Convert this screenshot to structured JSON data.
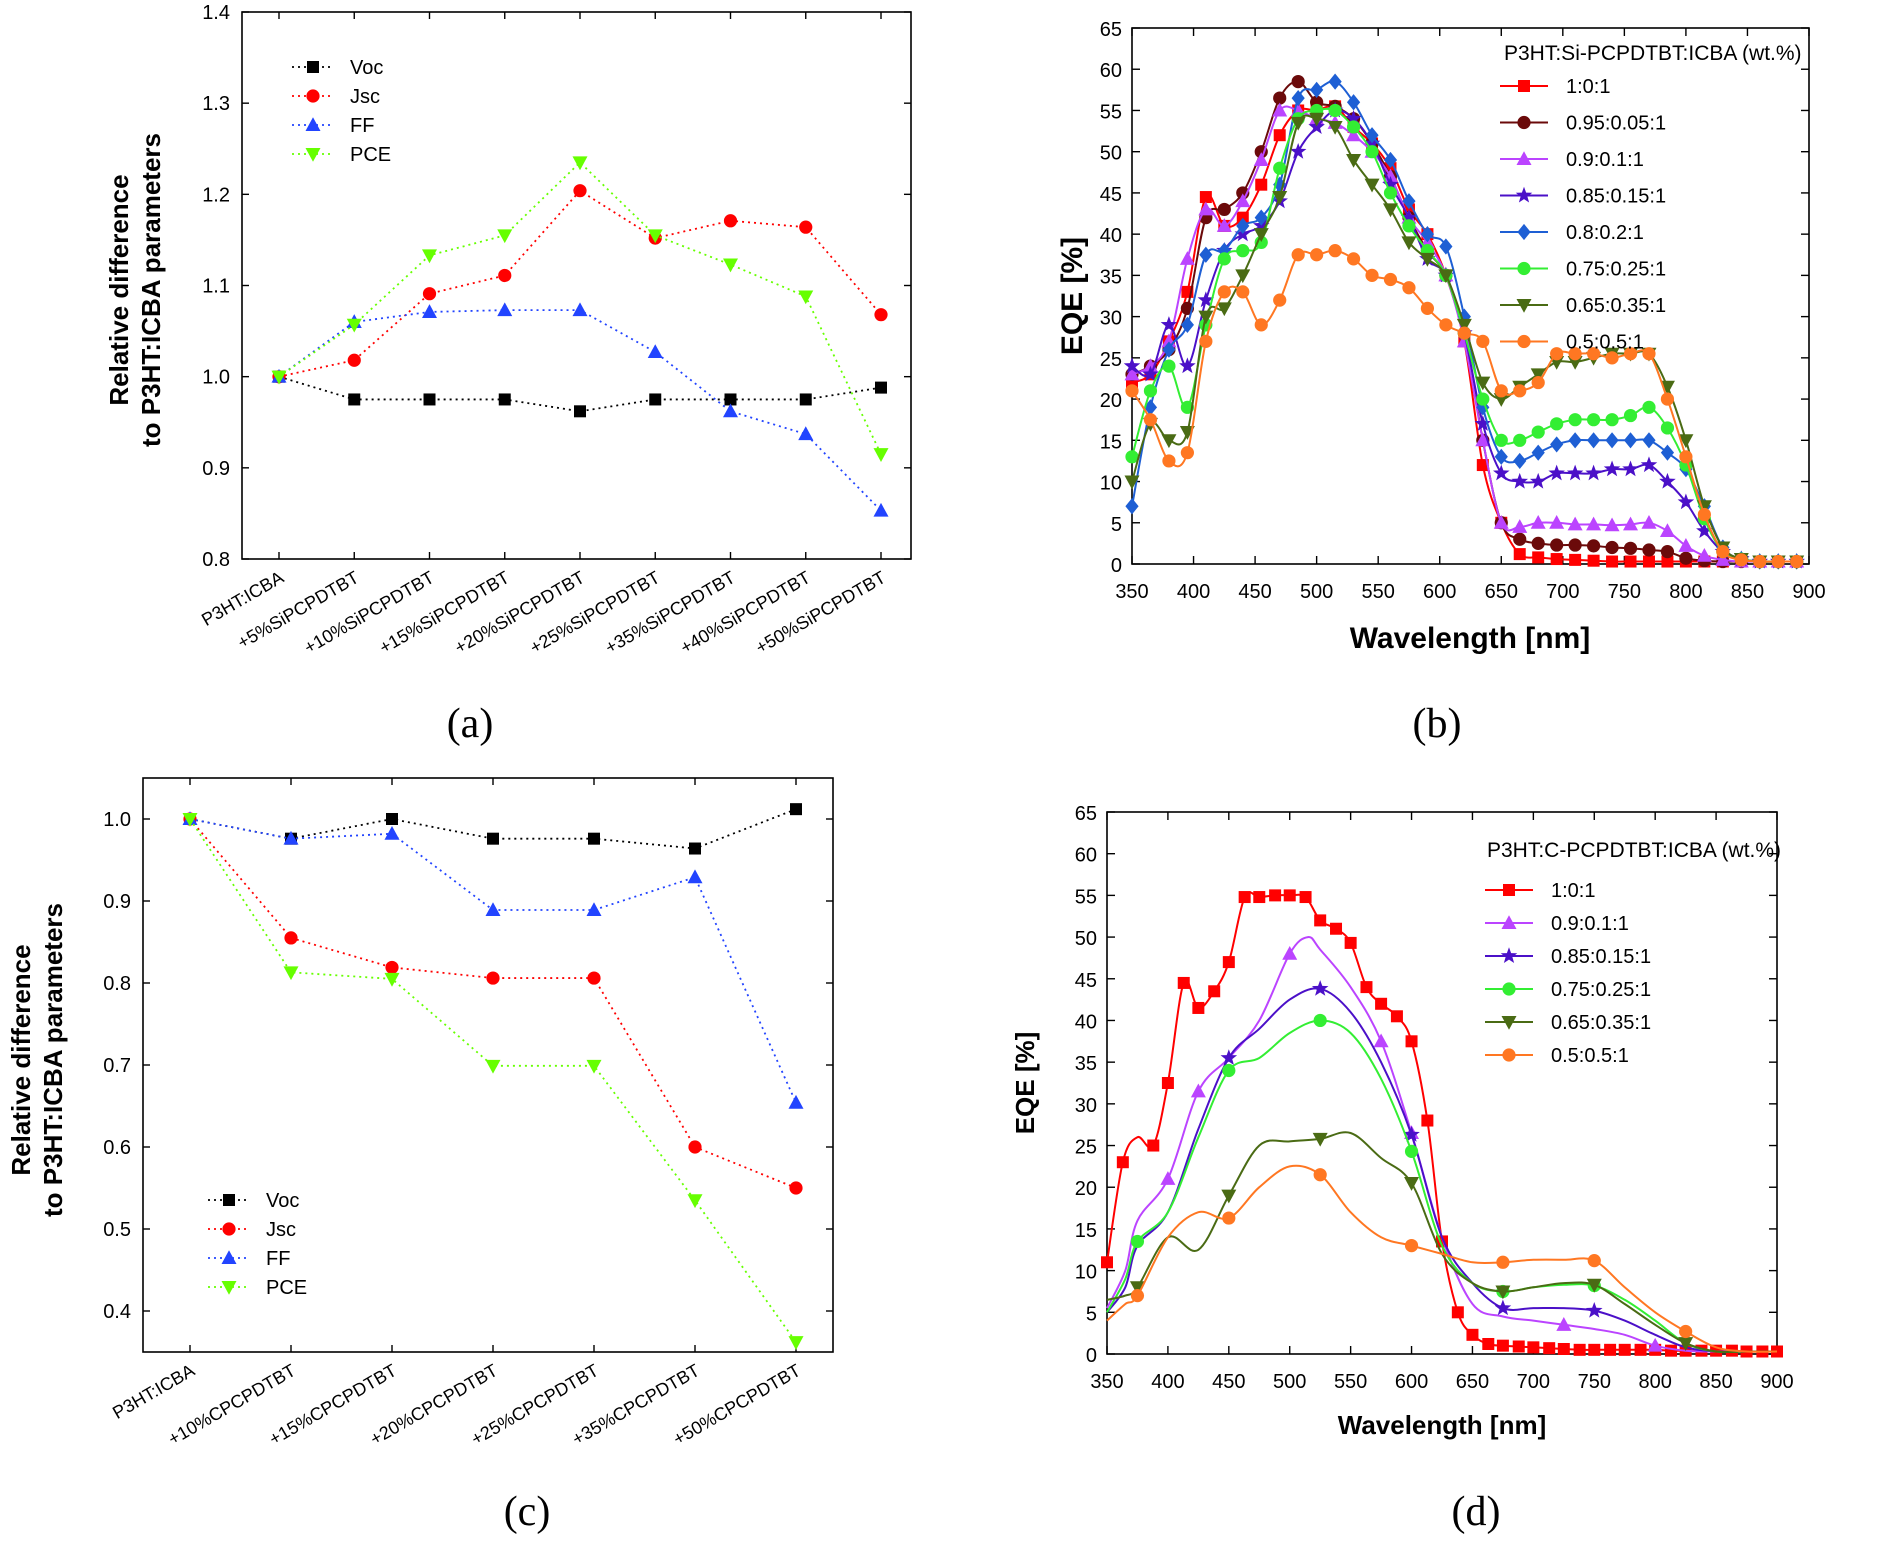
{
  "chart_data": [
    {
      "panel": "(a)",
      "type": "line",
      "ylabel_line1": "Relative difference",
      "ylabel_line2": "to P3HT:ICBA parameters",
      "ylim": [
        0.8,
        1.4
      ],
      "yticks": [
        "0.8",
        "0.9",
        "1.0",
        "1.1",
        "1.2",
        "1.3",
        "1.4"
      ],
      "categories": [
        "P3HT:ICBA",
        "+5%SiPCPDTBT",
        "+10%SiPCPDTBT",
        "+15%SiPCPDTBT",
        "+20%SiPCPDTBT",
        "+25%SiPCPDTBT",
        "+35%SiPCPDTBT",
        "+40%SiPCPDTBT",
        "+50%SiPCPDTBT"
      ],
      "legend_position": "top-left",
      "series": [
        {
          "name": "Voc",
          "color": "#000000",
          "marker": "square",
          "values": [
            1.0,
            0.975,
            0.975,
            0.975,
            0.962,
            0.975,
            0.975,
            0.975,
            0.988
          ]
        },
        {
          "name": "Jsc",
          "color": "#ff0000",
          "marker": "circle",
          "values": [
            1.0,
            1.018,
            1.091,
            1.111,
            1.204,
            1.152,
            1.171,
            1.164,
            1.068
          ]
        },
        {
          "name": "FF",
          "color": "#2244ff",
          "marker": "triangle-up",
          "values": [
            1.0,
            1.06,
            1.071,
            1.073,
            1.073,
            1.027,
            0.962,
            0.937,
            0.853
          ]
        },
        {
          "name": "PCE",
          "color": "#66ff00",
          "marker": "triangle-down",
          "values": [
            1.0,
            1.057,
            1.133,
            1.155,
            1.235,
            1.155,
            1.123,
            1.088,
            0.915
          ]
        }
      ]
    },
    {
      "panel": "(b)",
      "type": "line",
      "xlabel": "Wavelength [nm]",
      "ylabel": "EQE [%]",
      "xlim": [
        350,
        900
      ],
      "ylim": [
        0,
        65
      ],
      "xticks": [
        "350",
        "400",
        "450",
        "500",
        "550",
        "600",
        "650",
        "700",
        "750",
        "800",
        "850",
        "900"
      ],
      "yticks": [
        "0",
        "5",
        "10",
        "15",
        "20",
        "25",
        "30",
        "35",
        "40",
        "45",
        "50",
        "55",
        "60",
        "65"
      ],
      "legend_title": "P3HT:Si-PCPDTBT:ICBA (wt.%)",
      "legend_position": "top-right",
      "x": [
        350,
        365,
        380,
        395,
        410,
        425,
        440,
        455,
        470,
        485,
        500,
        515,
        530,
        545,
        560,
        575,
        590,
        605,
        620,
        635,
        650,
        665,
        680,
        695,
        710,
        725,
        740,
        755,
        770,
        785,
        800,
        815,
        830,
        845,
        860,
        875,
        890
      ],
      "series": [
        {
          "name": "1:0:1",
          "color": "#ff0000",
          "marker": "square",
          "values": [
            22,
            23,
            27,
            33,
            44.5,
            41,
            42,
            46,
            52,
            55,
            55,
            55.5,
            53,
            51,
            48,
            43,
            40,
            35,
            27,
            12,
            5,
            1.2,
            0.8,
            0.6,
            0.5,
            0.4,
            0.3,
            0.3,
            0.3,
            0.3,
            0.3,
            0.3,
            0.3,
            0.3,
            0.3,
            0.3,
            0.3
          ]
        },
        {
          "name": "0.95:0.05:1",
          "color": "#6b0a0a",
          "marker": "circle",
          "values": [
            23,
            24,
            26,
            31,
            42,
            43,
            45,
            50,
            56.5,
            58.5,
            56,
            55.5,
            54,
            51,
            47,
            42,
            38,
            35,
            28,
            15,
            5,
            3,
            2.5,
            2.3,
            2.3,
            2.2,
            2.0,
            1.9,
            1.7,
            1.5,
            0.7,
            0.4,
            0.3,
            0.3,
            0.3,
            0.3,
            0.3
          ]
        },
        {
          "name": "0.9:0.1:1",
          "color": "#bb44ff",
          "marker": "triangle-up",
          "values": [
            23,
            24,
            27,
            37,
            43,
            41,
            44,
            49,
            55,
            55,
            54,
            53.5,
            52,
            50,
            47,
            42,
            39,
            35,
            27,
            15,
            5,
            4.5,
            5,
            5,
            4.8,
            4.8,
            4.7,
            4.8,
            5,
            4,
            2.2,
            1.0,
            0.5,
            0.3,
            0.3,
            0.3,
            0.3
          ]
        },
        {
          "name": "0.85:0.15:1",
          "color": "#4b10c8",
          "marker": "star",
          "values": [
            24,
            23,
            29,
            24,
            32,
            38,
            40,
            41,
            44,
            50,
            53,
            55,
            54,
            51,
            46,
            42,
            37,
            35,
            28,
            17,
            11,
            10,
            10,
            11,
            11,
            11,
            11.5,
            11.5,
            12,
            10,
            7.5,
            4,
            1.5,
            0.6,
            0.3,
            0.3,
            0.3
          ]
        },
        {
          "name": "0.8:0.2:1",
          "color": "#1e5fd4",
          "marker": "diamond",
          "values": [
            7,
            19,
            26,
            29,
            37.5,
            38,
            41,
            42,
            46,
            56.5,
            57.5,
            58.5,
            56,
            52,
            49,
            44,
            40,
            38.5,
            30,
            19,
            13,
            12.5,
            13.5,
            14.5,
            15,
            15,
            15,
            15,
            15,
            13.5,
            11.5,
            7,
            2,
            0.6,
            0.3,
            0.3,
            0.3
          ]
        },
        {
          "name": "0.75:0.25:1",
          "color": "#33ee33",
          "marker": "circle",
          "values": [
            13,
            21,
            24,
            19,
            29,
            37,
            38,
            39,
            48,
            54,
            55,
            55,
            53,
            50,
            45,
            41,
            38,
            35,
            28,
            20,
            15,
            15,
            16,
            17,
            17.5,
            17.5,
            17.5,
            18,
            19,
            16.5,
            12,
            5.5,
            1.5,
            0.6,
            0.3,
            0.3,
            0.3
          ]
        },
        {
          "name": "0.65:0.35:1",
          "color": "#4a6b14",
          "marker": "triangle-down",
          "values": [
            10,
            17,
            15,
            16,
            30,
            31,
            35,
            40,
            44.5,
            53.5,
            54,
            53,
            49,
            46,
            43,
            39,
            37,
            35,
            29,
            22,
            20,
            21.5,
            23,
            24.5,
            24.5,
            25,
            25.5,
            25.5,
            25.5,
            21.5,
            15,
            7,
            2,
            0.6,
            0.3,
            0.3,
            0.3
          ]
        },
        {
          "name": "0.5:0.5:1",
          "color": "#ff7722",
          "marker": "circle",
          "values": [
            21,
            17.5,
            12.5,
            13.5,
            27,
            33,
            33,
            29,
            32,
            37.5,
            37.5,
            38,
            37,
            35,
            34.5,
            33.5,
            31,
            29,
            28,
            27,
            21,
            21,
            22,
            25.5,
            25.5,
            25.5,
            25,
            25.5,
            25.5,
            20,
            13,
            6,
            1.5,
            0.5,
            0.3,
            0.3,
            0.3
          ]
        }
      ]
    },
    {
      "panel": "(c)",
      "type": "line",
      "ylabel_line1": "Relative difference",
      "ylabel_line2": "to P3HT:ICBA parameters",
      "ylim": [
        0.35,
        1.05
      ],
      "yticks": [
        "0.4",
        "0.5",
        "0.6",
        "0.7",
        "0.8",
        "0.9",
        "1.0"
      ],
      "categories": [
        "P3HT:ICBA",
        "+10%CPCPDTBT",
        "+15%CPCPDTBT",
        "+20%CPCPDTBT",
        "+25%CPCPDTBT",
        "+35%CPCPDTBT",
        "+50%CPCPDTBT"
      ],
      "legend_position": "bottom-left",
      "series": [
        {
          "name": "Voc",
          "color": "#000000",
          "marker": "square",
          "values": [
            1.0,
            0.976,
            1.0,
            0.976,
            0.976,
            0.964,
            1.012
          ]
        },
        {
          "name": "Jsc",
          "color": "#ff0000",
          "marker": "circle",
          "values": [
            1.0,
            0.855,
            0.819,
            0.806,
            0.806,
            0.6,
            0.55
          ]
        },
        {
          "name": "FF",
          "color": "#2244ff",
          "marker": "triangle-up",
          "values": [
            1.0,
            0.976,
            0.982,
            0.889,
            0.889,
            0.929,
            0.654
          ]
        },
        {
          "name": "PCE",
          "color": "#66ff00",
          "marker": "triangle-down",
          "values": [
            1.0,
            0.813,
            0.805,
            0.699,
            0.699,
            0.535,
            0.362
          ]
        }
      ]
    },
    {
      "panel": "(d)",
      "type": "line",
      "xlabel": "Wavelength [nm]",
      "ylabel": "EQE [%]",
      "xlim": [
        350,
        900
      ],
      "ylim": [
        0,
        65
      ],
      "xticks": [
        "350",
        "400",
        "450",
        "500",
        "550",
        "600",
        "650",
        "700",
        "750",
        "800",
        "850",
        "900"
      ],
      "yticks": [
        "0",
        "5",
        "10",
        "15",
        "20",
        "25",
        "30",
        "35",
        "40",
        "45",
        "50",
        "55",
        "60",
        "65"
      ],
      "legend_title": "P3HT:C-PCPDTBT:ICBA (wt.%)",
      "legend_position": "top-right",
      "series": [
        {
          "name": "1:0:1",
          "color": "#ff0000",
          "marker": "square",
          "x": [
            350,
            363,
            375,
            388,
            400,
            413,
            425,
            438,
            450,
            463,
            475,
            488,
            500,
            513,
            525,
            538,
            550,
            563,
            575,
            588,
            600,
            613,
            625,
            638,
            650,
            663,
            675,
            688,
            700,
            713,
            725,
            738,
            750,
            763,
            775,
            788,
            800,
            813,
            825,
            838,
            850,
            863,
            875,
            888,
            900
          ],
          "values": [
            11,
            23,
            26,
            25,
            32.5,
            44.5,
            41.5,
            43.5,
            47,
            54.8,
            54.8,
            55,
            55,
            54.8,
            52,
            51,
            49.3,
            44,
            42,
            40.5,
            37.5,
            28,
            13.5,
            5,
            2.3,
            1.2,
            1.0,
            0.9,
            0.8,
            0.7,
            0.6,
            0.5,
            0.5,
            0.5,
            0.5,
            0.5,
            0.5,
            0.4,
            0.4,
            0.4,
            0.4,
            0.4,
            0.3,
            0.3,
            0.3
          ],
          "marked": [
            0,
            1,
            3,
            4,
            5,
            6,
            7,
            8,
            9,
            10,
            11,
            12,
            13,
            14,
            15,
            16,
            17,
            18,
            19,
            20,
            21,
            22,
            23,
            24,
            25,
            26,
            27,
            28,
            29,
            30,
            31,
            32,
            33,
            34,
            35,
            36,
            37,
            38,
            39,
            40,
            41,
            42,
            43,
            44
          ]
        },
        {
          "name": "0.9:0.1:1",
          "color": "#bb44ff",
          "marker": "triangle-up",
          "x": [
            350,
            365,
            375,
            400,
            425,
            450,
            475,
            500,
            515,
            525,
            550,
            575,
            600,
            625,
            650,
            675,
            700,
            725,
            750,
            775,
            800,
            825,
            850,
            875,
            900
          ],
          "values": [
            5.5,
            10,
            16,
            21,
            31.5,
            35.5,
            40,
            48,
            50,
            48.5,
            44,
            37.5,
            26.5,
            14,
            6,
            4.5,
            4,
            3.5,
            3,
            2.3,
            1.0,
            0.4,
            0.3,
            0.3,
            0.3
          ],
          "marked": [
            3,
            4,
            7,
            11,
            12,
            17,
            20
          ]
        },
        {
          "name": "0.85:0.15:1",
          "color": "#4b10c8",
          "marker": "star",
          "x": [
            350,
            365,
            375,
            400,
            425,
            450,
            475,
            500,
            525,
            550,
            575,
            600,
            625,
            650,
            675,
            700,
            725,
            750,
            775,
            800,
            825,
            850,
            875,
            900
          ],
          "values": [
            5,
            8,
            13,
            17,
            27,
            35.5,
            39,
            42.5,
            43.8,
            41,
            35,
            26.3,
            14,
            8.5,
            5.5,
            5.5,
            5.5,
            5.2,
            4,
            2.3,
            0.8,
            0.3,
            0.3,
            0.3
          ],
          "marked": [
            5,
            8,
            11,
            14,
            17
          ]
        },
        {
          "name": "0.75:0.25:1",
          "color": "#33ee33",
          "marker": "circle",
          "x": [
            350,
            365,
            375,
            400,
            425,
            450,
            475,
            500,
            525,
            550,
            575,
            600,
            625,
            650,
            675,
            700,
            725,
            750,
            775,
            800,
            825,
            850,
            875,
            900
          ],
          "values": [
            5,
            9,
            13.5,
            17,
            26,
            34,
            35.5,
            38.5,
            40,
            38.5,
            33,
            24.3,
            13,
            8.5,
            7.5,
            8,
            8.3,
            8.2,
            6.5,
            4,
            1.3,
            0.3,
            0.3,
            0.3
          ],
          "marked": [
            2,
            5,
            8,
            11,
            14,
            17
          ]
        },
        {
          "name": "0.65:0.35:1",
          "color": "#4a6b14",
          "marker": "triangle-down",
          "x": [
            350,
            365,
            375,
            400,
            425,
            450,
            475,
            500,
            525,
            550,
            575,
            600,
            625,
            650,
            675,
            700,
            725,
            750,
            775,
            800,
            825,
            850,
            875,
            900
          ],
          "values": [
            6.5,
            7,
            8,
            14,
            12.5,
            19,
            25,
            25.5,
            25.8,
            26.5,
            23.5,
            20.5,
            12,
            8.5,
            7.5,
            8,
            8.5,
            8.3,
            6,
            3.5,
            1.3,
            0.3,
            0.3,
            0.3
          ],
          "marked": [
            2,
            5,
            8,
            11,
            14,
            17,
            20
          ]
        },
        {
          "name": "0.5:0.5:1",
          "color": "#ff7722",
          "marker": "circle",
          "x": [
            350,
            365,
            375,
            400,
            425,
            450,
            475,
            500,
            525,
            550,
            575,
            600,
            625,
            650,
            675,
            700,
            725,
            750,
            775,
            800,
            825,
            850,
            875,
            900
          ],
          "values": [
            4,
            6,
            7,
            14,
            17,
            16.3,
            20,
            22.5,
            21.5,
            17,
            14,
            13,
            12,
            11,
            11,
            11.3,
            11.3,
            11.2,
            8,
            5,
            2.7,
            0.8,
            0.3,
            0.3
          ],
          "marked": [
            2,
            5,
            8,
            11,
            14,
            17,
            20
          ]
        }
      ]
    }
  ]
}
